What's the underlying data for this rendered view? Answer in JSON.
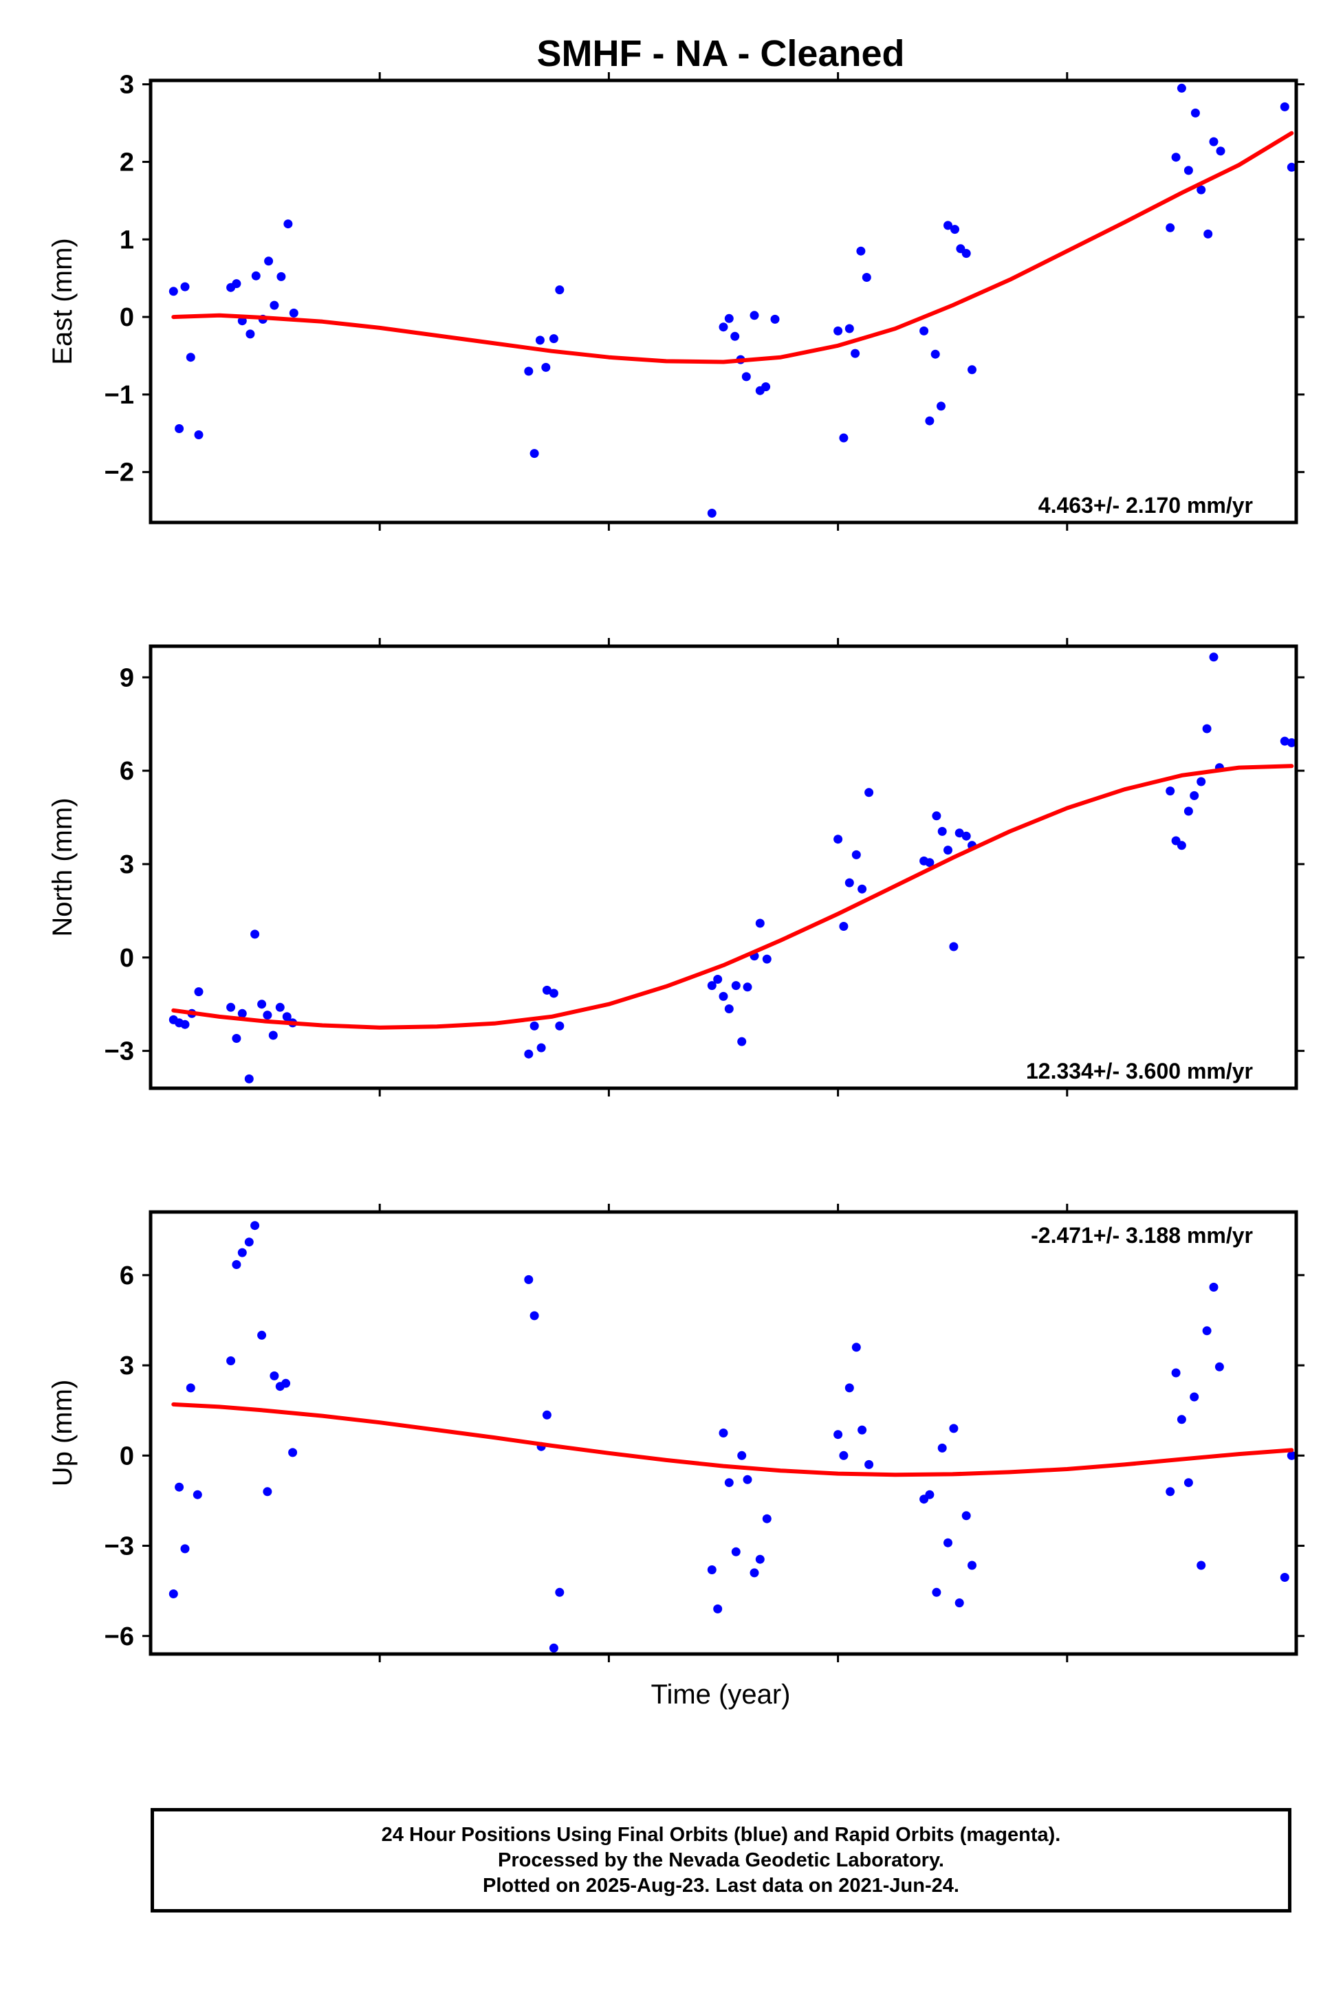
{
  "figure": {
    "title": "SMHF  - NA - Cleaned",
    "xlabel": "Time (year)"
  },
  "colors": {
    "points": "#0000ff",
    "fit": "#ff0000",
    "frame": "#000000"
  },
  "footer": {
    "lines": [
      "24 Hour Positions Using Final Orbits (blue) and Rapid Orbits (magenta).",
      "Processed by the Nevada Geodetic Laboratory.",
      "Plotted on 2025-Aug-23. Last data on 2021-Jun-24."
    ]
  },
  "chart_data": [
    {
      "type": "scatter",
      "ylabel": "East (mm)",
      "ylim": [
        -2.65,
        3.05
      ],
      "yticks": [
        3,
        2,
        1,
        0,
        -1,
        -2
      ],
      "ytick_labels": [
        "3",
        "2",
        "1",
        "0",
        "−1",
        "−2"
      ],
      "xlim": [
        0,
        1
      ],
      "rate_label": "4.463+/- 2.170 mm/yr",
      "rate_position": "bottom-right",
      "grid": false,
      "points": [
        [
          0.02,
          0.33
        ],
        [
          0.025,
          -1.44
        ],
        [
          0.03,
          0.39
        ],
        [
          0.035,
          -0.52
        ],
        [
          0.042,
          -1.52
        ],
        [
          0.07,
          0.38
        ],
        [
          0.075,
          0.43
        ],
        [
          0.08,
          -0.05
        ],
        [
          0.087,
          -0.22
        ],
        [
          0.092,
          0.53
        ],
        [
          0.098,
          -0.03
        ],
        [
          0.103,
          0.72
        ],
        [
          0.108,
          0.15
        ],
        [
          0.114,
          0.52
        ],
        [
          0.12,
          1.2
        ],
        [
          0.125,
          0.05
        ],
        [
          0.33,
          -0.7
        ],
        [
          0.335,
          -1.76
        ],
        [
          0.34,
          -0.3
        ],
        [
          0.345,
          -0.65
        ],
        [
          0.352,
          -0.28
        ],
        [
          0.357,
          0.35
        ],
        [
          0.49,
          -2.53
        ],
        [
          0.5,
          -0.13
        ],
        [
          0.505,
          -0.02
        ],
        [
          0.51,
          -0.25
        ],
        [
          0.515,
          -0.55
        ],
        [
          0.52,
          -0.77
        ],
        [
          0.527,
          0.02
        ],
        [
          0.532,
          -0.95
        ],
        [
          0.537,
          -0.9
        ],
        [
          0.545,
          -0.03
        ],
        [
          0.6,
          -0.18
        ],
        [
          0.605,
          -1.56
        ],
        [
          0.61,
          -0.15
        ],
        [
          0.615,
          -0.47
        ],
        [
          0.62,
          0.85
        ],
        [
          0.625,
          0.51
        ],
        [
          0.675,
          -0.18
        ],
        [
          0.68,
          -1.34
        ],
        [
          0.685,
          -0.48
        ],
        [
          0.69,
          -1.15
        ],
        [
          0.696,
          1.18
        ],
        [
          0.702,
          1.13
        ],
        [
          0.707,
          0.88
        ],
        [
          0.712,
          0.82
        ],
        [
          0.717,
          -0.68
        ],
        [
          0.89,
          1.15
        ],
        [
          0.895,
          2.06
        ],
        [
          0.9,
          2.95
        ],
        [
          0.906,
          1.89
        ],
        [
          0.912,
          2.63
        ],
        [
          0.917,
          1.64
        ],
        [
          0.923,
          1.07
        ],
        [
          0.928,
          2.26
        ],
        [
          0.934,
          2.14
        ],
        [
          0.99,
          2.71
        ],
        [
          0.996,
          1.93
        ]
      ],
      "fit": [
        [
          0.02,
          0.0
        ],
        [
          0.06,
          0.02
        ],
        [
          0.1,
          -0.01
        ],
        [
          0.15,
          -0.06
        ],
        [
          0.2,
          -0.14
        ],
        [
          0.25,
          -0.24
        ],
        [
          0.3,
          -0.34
        ],
        [
          0.35,
          -0.44
        ],
        [
          0.4,
          -0.52
        ],
        [
          0.45,
          -0.57
        ],
        [
          0.5,
          -0.58
        ],
        [
          0.55,
          -0.52
        ],
        [
          0.6,
          -0.37
        ],
        [
          0.65,
          -0.15
        ],
        [
          0.7,
          0.15
        ],
        [
          0.75,
          0.48
        ],
        [
          0.8,
          0.85
        ],
        [
          0.85,
          1.22
        ],
        [
          0.9,
          1.6
        ],
        [
          0.95,
          1.96
        ],
        [
          0.996,
          2.37
        ]
      ]
    },
    {
      "type": "scatter",
      "ylabel": "North (mm)",
      "ylim": [
        -4.2,
        10.0
      ],
      "yticks": [
        9,
        6,
        3,
        0,
        -3
      ],
      "ytick_labels": [
        "9",
        "6",
        "3",
        "0",
        "−3"
      ],
      "xlim": [
        0,
        1
      ],
      "rate_label": "12.334+/- 3.600 mm/yr",
      "rate_position": "bottom-right",
      "grid": false,
      "points": [
        [
          0.02,
          -2.0
        ],
        [
          0.025,
          -2.1
        ],
        [
          0.03,
          -2.15
        ],
        [
          0.036,
          -1.8
        ],
        [
          0.042,
          -1.1
        ],
        [
          0.07,
          -1.6
        ],
        [
          0.075,
          -2.6
        ],
        [
          0.08,
          -1.8
        ],
        [
          0.086,
          -3.9
        ],
        [
          0.091,
          0.75
        ],
        [
          0.097,
          -1.5
        ],
        [
          0.102,
          -1.85
        ],
        [
          0.107,
          -2.5
        ],
        [
          0.113,
          -1.6
        ],
        [
          0.119,
          -1.9
        ],
        [
          0.124,
          -2.1
        ],
        [
          0.33,
          -3.1
        ],
        [
          0.335,
          -2.2
        ],
        [
          0.341,
          -2.9
        ],
        [
          0.346,
          -1.05
        ],
        [
          0.352,
          -1.15
        ],
        [
          0.357,
          -2.2
        ],
        [
          0.49,
          -0.9
        ],
        [
          0.495,
          -0.7
        ],
        [
          0.5,
          -1.25
        ],
        [
          0.505,
          -1.65
        ],
        [
          0.511,
          -0.9
        ],
        [
          0.516,
          -2.7
        ],
        [
          0.521,
          -0.95
        ],
        [
          0.527,
          0.05
        ],
        [
          0.532,
          1.1
        ],
        [
          0.538,
          -0.05
        ],
        [
          0.6,
          3.8
        ],
        [
          0.605,
          1.0
        ],
        [
          0.61,
          2.4
        ],
        [
          0.616,
          3.3
        ],
        [
          0.621,
          2.2
        ],
        [
          0.627,
          5.3
        ],
        [
          0.675,
          3.1
        ],
        [
          0.68,
          3.05
        ],
        [
          0.686,
          4.55
        ],
        [
          0.691,
          4.05
        ],
        [
          0.696,
          3.45
        ],
        [
          0.701,
          0.35
        ],
        [
          0.706,
          4.0
        ],
        [
          0.712,
          3.9
        ],
        [
          0.717,
          3.6
        ],
        [
          0.89,
          5.35
        ],
        [
          0.895,
          3.75
        ],
        [
          0.9,
          3.6
        ],
        [
          0.906,
          4.7
        ],
        [
          0.911,
          5.2
        ],
        [
          0.917,
          5.65
        ],
        [
          0.922,
          7.35
        ],
        [
          0.928,
          9.65
        ],
        [
          0.933,
          6.1
        ],
        [
          0.99,
          6.95
        ],
        [
          0.996,
          6.9
        ]
      ],
      "fit": [
        [
          0.02,
          -1.7
        ],
        [
          0.06,
          -1.9
        ],
        [
          0.1,
          -2.05
        ],
        [
          0.15,
          -2.18
        ],
        [
          0.2,
          -2.25
        ],
        [
          0.25,
          -2.22
        ],
        [
          0.3,
          -2.12
        ],
        [
          0.35,
          -1.9
        ],
        [
          0.4,
          -1.5
        ],
        [
          0.45,
          -0.93
        ],
        [
          0.5,
          -0.25
        ],
        [
          0.55,
          0.55
        ],
        [
          0.6,
          1.4
        ],
        [
          0.65,
          2.3
        ],
        [
          0.7,
          3.2
        ],
        [
          0.75,
          4.05
        ],
        [
          0.8,
          4.8
        ],
        [
          0.85,
          5.4
        ],
        [
          0.9,
          5.85
        ],
        [
          0.95,
          6.1
        ],
        [
          0.996,
          6.15
        ]
      ]
    },
    {
      "type": "scatter",
      "ylabel": "Up (mm)",
      "ylim": [
        -6.6,
        8.1
      ],
      "yticks": [
        6,
        3,
        0,
        -3,
        -6
      ],
      "ytick_labels": [
        "6",
        "3",
        "0",
        "−3",
        "−6"
      ],
      "xlim": [
        0,
        1
      ],
      "rate_label": "-2.471+/- 3.188 mm/yr",
      "rate_position": "top-right",
      "grid": false,
      "points": [
        [
          0.02,
          -4.6
        ],
        [
          0.025,
          -1.05
        ],
        [
          0.03,
          -3.1
        ],
        [
          0.035,
          2.25
        ],
        [
          0.041,
          -1.3
        ],
        [
          0.07,
          3.15
        ],
        [
          0.075,
          6.35
        ],
        [
          0.08,
          6.75
        ],
        [
          0.086,
          7.1
        ],
        [
          0.091,
          7.65
        ],
        [
          0.097,
          4.0
        ],
        [
          0.102,
          -1.2
        ],
        [
          0.108,
          2.65
        ],
        [
          0.113,
          2.3
        ],
        [
          0.118,
          2.4
        ],
        [
          0.124,
          0.1
        ],
        [
          0.33,
          5.85
        ],
        [
          0.335,
          4.65
        ],
        [
          0.341,
          0.3
        ],
        [
          0.346,
          1.35
        ],
        [
          0.352,
          -6.4
        ],
        [
          0.357,
          -4.55
        ],
        [
          0.49,
          -3.8
        ],
        [
          0.495,
          -5.1
        ],
        [
          0.5,
          0.75
        ],
        [
          0.505,
          -0.9
        ],
        [
          0.511,
          -3.2
        ],
        [
          0.516,
          0.0
        ],
        [
          0.521,
          -0.8
        ],
        [
          0.527,
          -3.9
        ],
        [
          0.532,
          -3.45
        ],
        [
          0.538,
          -2.1
        ],
        [
          0.6,
          0.7
        ],
        [
          0.605,
          0.0
        ],
        [
          0.61,
          2.25
        ],
        [
          0.616,
          3.6
        ],
        [
          0.621,
          0.85
        ],
        [
          0.627,
          -0.3
        ],
        [
          0.675,
          -1.45
        ],
        [
          0.68,
          -1.3
        ],
        [
          0.686,
          -4.55
        ],
        [
          0.691,
          0.25
        ],
        [
          0.696,
          -2.9
        ],
        [
          0.701,
          0.9
        ],
        [
          0.706,
          -4.9
        ],
        [
          0.712,
          -2.0
        ],
        [
          0.717,
          -3.65
        ],
        [
          0.89,
          -1.2
        ],
        [
          0.895,
          2.75
        ],
        [
          0.9,
          1.2
        ],
        [
          0.906,
          -0.9
        ],
        [
          0.911,
          1.95
        ],
        [
          0.917,
          -3.65
        ],
        [
          0.922,
          4.15
        ],
        [
          0.928,
          5.6
        ],
        [
          0.933,
          2.95
        ],
        [
          0.99,
          -4.05
        ],
        [
          0.996,
          0.0
        ]
      ],
      "fit": [
        [
          0.02,
          1.7
        ],
        [
          0.06,
          1.62
        ],
        [
          0.1,
          1.5
        ],
        [
          0.15,
          1.32
        ],
        [
          0.2,
          1.1
        ],
        [
          0.25,
          0.85
        ],
        [
          0.3,
          0.6
        ],
        [
          0.35,
          0.33
        ],
        [
          0.4,
          0.08
        ],
        [
          0.45,
          -0.15
        ],
        [
          0.5,
          -0.35
        ],
        [
          0.55,
          -0.5
        ],
        [
          0.6,
          -0.6
        ],
        [
          0.65,
          -0.64
        ],
        [
          0.7,
          -0.62
        ],
        [
          0.75,
          -0.55
        ],
        [
          0.8,
          -0.45
        ],
        [
          0.85,
          -0.3
        ],
        [
          0.9,
          -0.12
        ],
        [
          0.95,
          0.05
        ],
        [
          0.996,
          0.18
        ]
      ]
    }
  ]
}
